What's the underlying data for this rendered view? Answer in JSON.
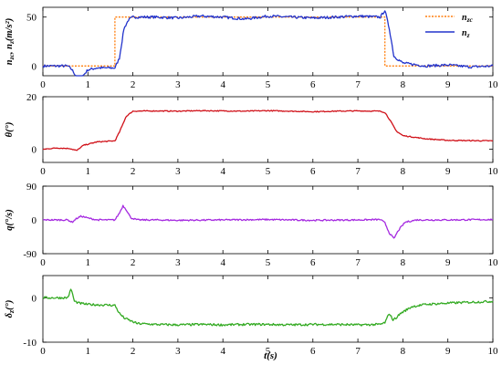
{
  "chart_data": [
    {
      "type": "line",
      "ylabel": "n_zc, n_z(m/s²)",
      "xlim": [
        0,
        10
      ],
      "ylim": [
        -10,
        60
      ],
      "yticks": [
        "0",
        "50"
      ],
      "xticks": [
        "0",
        "1",
        "2",
        "3",
        "4",
        "5",
        "6",
        "7",
        "8",
        "9",
        "10"
      ],
      "legend_position": "top-right",
      "series": [
        {
          "name": "n_zc",
          "color": "#ff7f0e",
          "style": "dotted",
          "x": [
            0,
            1.6,
            1.6,
            7.6,
            7.6,
            10
          ],
          "y": [
            0,
            0,
            50,
            50,
            0,
            0
          ]
        },
        {
          "name": "n_z",
          "color": "#2233cc",
          "style": "solid",
          "x": [
            0,
            0.55,
            0.65,
            0.8,
            1.0,
            1.2,
            1.6,
            1.7,
            1.8,
            1.9,
            2.0,
            2.5,
            3,
            3.5,
            4,
            4.5,
            5,
            5.5,
            6,
            6.5,
            7,
            7.5,
            7.6,
            7.7,
            7.8,
            8.0,
            8.5,
            9,
            9.5,
            10
          ],
          "y": [
            0,
            0,
            -4,
            -15,
            -4,
            -2,
            -2,
            8,
            38,
            47,
            50,
            50,
            49,
            51,
            50,
            48,
            51,
            50,
            49,
            50,
            51,
            50,
            57,
            38,
            10,
            3,
            0,
            1,
            -1,
            0
          ]
        }
      ]
    },
    {
      "type": "line",
      "ylabel": "θ(°)",
      "xlim": [
        0,
        10
      ],
      "ylim": [
        -5,
        20
      ],
      "yticks": [
        "0",
        "20"
      ],
      "xticks": [
        "0",
        "1",
        "2",
        "3",
        "4",
        "5",
        "6",
        "7",
        "8",
        "9",
        "10"
      ],
      "series": [
        {
          "color": "#d01018",
          "x": [
            0,
            0.3,
            0.6,
            0.75,
            0.9,
            1.2,
            1.6,
            1.7,
            1.85,
            2.0,
            2.5,
            3,
            3.5,
            4,
            4.5,
            5,
            5.5,
            6,
            6.5,
            7,
            7.5,
            7.6,
            7.7,
            7.85,
            8.0,
            8.5,
            9,
            9.5,
            10
          ],
          "y": [
            0,
            0.5,
            0.3,
            -0.5,
            1.5,
            2.8,
            3.2,
            6.5,
            12.5,
            14.5,
            14.6,
            14.5,
            14.7,
            14.6,
            14.5,
            14.7,
            14.5,
            14.3,
            14.5,
            14.6,
            14.5,
            14.0,
            11.5,
            7.0,
            5.2,
            4.0,
            3.4,
            3.3,
            3.2
          ]
        }
      ]
    },
    {
      "type": "line",
      "ylabel": "q(°/s)",
      "xlim": [
        0,
        10
      ],
      "ylim": [
        -90,
        90
      ],
      "yticks": [
        "-90",
        "0",
        "90"
      ],
      "xticks": [
        "0",
        "1",
        "2",
        "3",
        "4",
        "5",
        "6",
        "7",
        "8",
        "9",
        "10"
      ],
      "series": [
        {
          "color": "#a52ae0",
          "x": [
            0,
            0.55,
            0.65,
            0.75,
            0.85,
            1.0,
            1.2,
            1.6,
            1.7,
            1.78,
            1.85,
            1.95,
            2.1,
            2.5,
            3,
            4,
            5,
            6,
            7,
            7.5,
            7.6,
            7.7,
            7.8,
            7.9,
            8.05,
            8.3,
            9,
            10
          ],
          "y": [
            0,
            0,
            -6,
            4,
            10,
            5,
            0,
            0,
            18,
            38,
            28,
            6,
            0,
            0,
            -1,
            0,
            1,
            -1,
            0,
            1,
            -8,
            -35,
            -50,
            -28,
            -6,
            0,
            0,
            1
          ]
        }
      ]
    },
    {
      "type": "line",
      "ylabel": "δz(°)",
      "xlabel": "t(s)",
      "xlim": [
        0,
        10
      ],
      "ylim": [
        -10,
        5
      ],
      "yticks": [
        "-10",
        "0"
      ],
      "xticks": [
        "0",
        "1",
        "2",
        "3",
        "4",
        "5",
        "6",
        "7",
        "8",
        "9",
        "10"
      ],
      "series": [
        {
          "color": "#33aa22",
          "x": [
            0,
            0.55,
            0.63,
            0.7,
            0.8,
            1.0,
            1.6,
            1.7,
            1.8,
            1.95,
            2.1,
            2.5,
            3,
            3.5,
            4,
            4.5,
            5,
            5.5,
            6,
            6.5,
            7,
            7.5,
            7.6,
            7.7,
            7.78,
            7.85,
            7.95,
            8.2,
            8.5,
            9,
            9.5,
            10
          ],
          "y": [
            0,
            0,
            2,
            -0.8,
            -1.2,
            -1.5,
            -1.7,
            -3.5,
            -4.5,
            -5.2,
            -5.8,
            -6.0,
            -6.1,
            -6.0,
            -6.1,
            -6.0,
            -6.0,
            -6.1,
            -6.0,
            -6.0,
            -6.1,
            -6.0,
            -5.6,
            -3.5,
            -5.0,
            -4.5,
            -3.5,
            -2.0,
            -1.5,
            -1.2,
            -1.0,
            -0.8
          ]
        }
      ]
    }
  ]
}
